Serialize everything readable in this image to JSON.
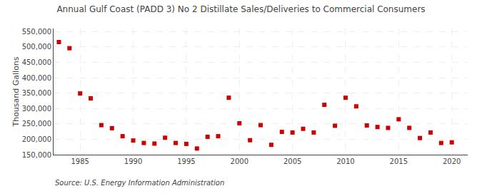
{
  "chart_data": {
    "type": "scatter",
    "title": "Annual Gulf Coast (PADD 3) No 2 Distillate Sales/Deliveries to Commercial Consumers",
    "ylabel": "Thousand Gallons",
    "annotations": [
      "Source: U.S. Energy Information Administration"
    ],
    "x": [
      1983,
      1984,
      1985,
      1986,
      1987,
      1988,
      1989,
      1990,
      1991,
      1992,
      1993,
      1994,
      1995,
      1996,
      1997,
      1998,
      1999,
      2000,
      2001,
      2002,
      2003,
      2004,
      2005,
      2006,
      2007,
      2008,
      2009,
      2010,
      2011,
      2012,
      2013,
      2014,
      2015,
      2016,
      2017,
      2018,
      2019,
      2020
    ],
    "values": [
      516000,
      496000,
      349000,
      333000,
      246000,
      236000,
      210000,
      196000,
      188000,
      186000,
      205000,
      188000,
      185000,
      170000,
      208000,
      210000,
      335000,
      252000,
      197000,
      246000,
      182000,
      224000,
      222000,
      234000,
      222000,
      312000,
      244000,
      335000,
      307000,
      245000,
      240000,
      237000,
      265000,
      237000,
      204000,
      222000,
      188000,
      190000
    ],
    "color": "#cc0000",
    "marker": "square",
    "xlim": [
      1982.5,
      2021.5
    ],
    "xticks": [
      1985,
      1990,
      1995,
      2000,
      2005,
      2010,
      2015,
      2020
    ],
    "ylim": [
      150000,
      560000
    ],
    "yticks": [
      {
        "value": 150000,
        "label": "150,000"
      },
      {
        "value": 200000,
        "label": "200,000"
      },
      {
        "value": 250000,
        "label": "250,000"
      },
      {
        "value": 300000,
        "label": "300,000"
      },
      {
        "value": 350000,
        "label": "350,000"
      },
      {
        "value": 400000,
        "label": "400,000"
      },
      {
        "value": 450000,
        "label": "450,000"
      },
      {
        "value": 500000,
        "label": "500,000"
      },
      {
        "value": 550000,
        "label": "550,000"
      }
    ],
    "grid": true
  }
}
